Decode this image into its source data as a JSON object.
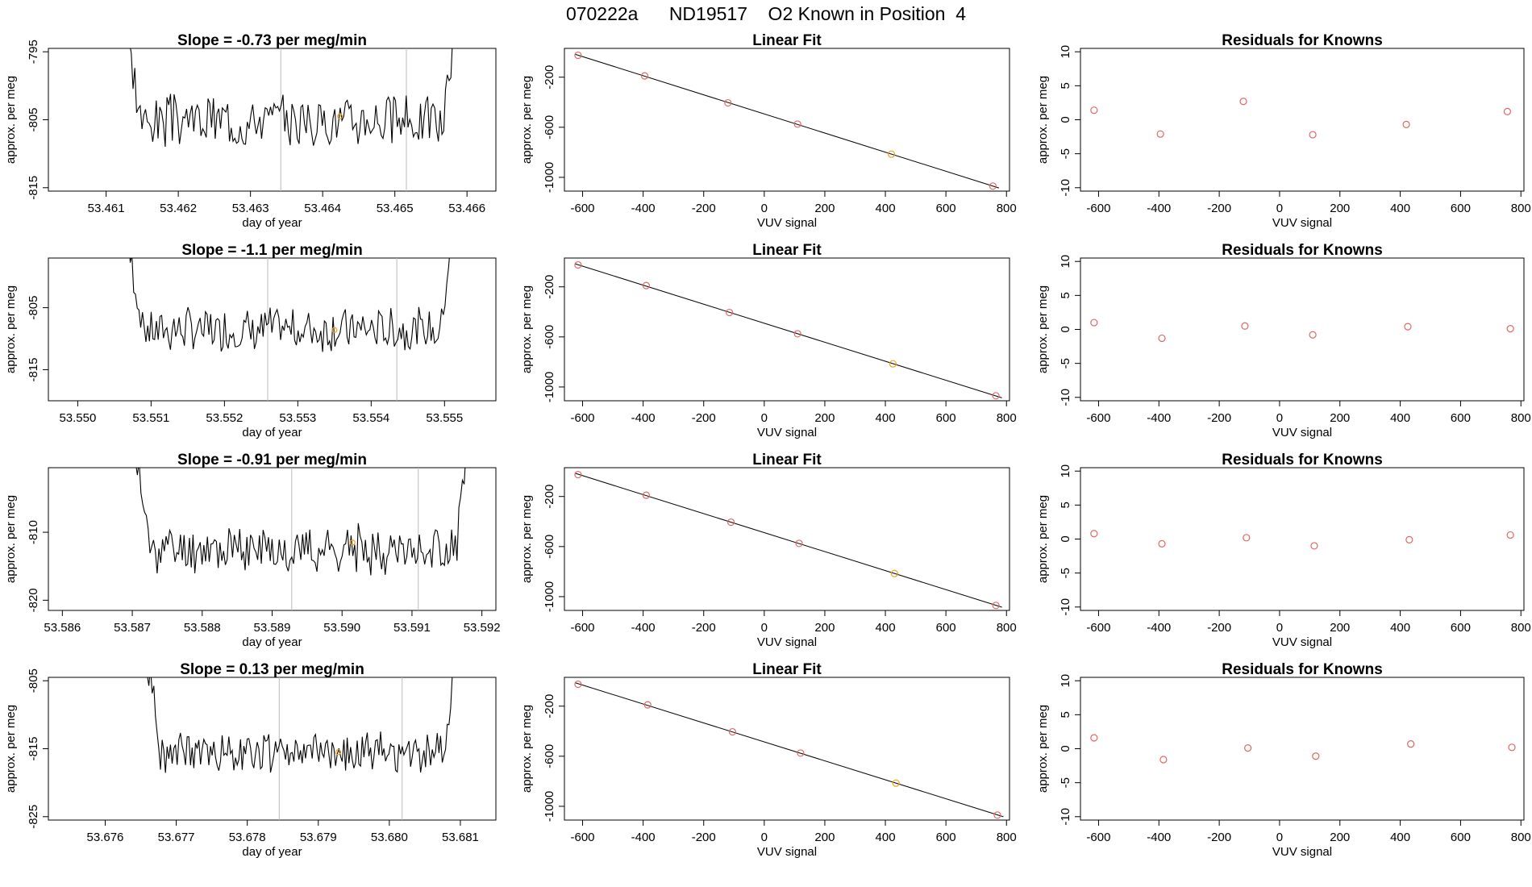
{
  "title": "070222a      ND19517    O2 Known in Position  4",
  "colors": {
    "trace": "#000000",
    "points": "#e06666",
    "highlight": "#f0a020",
    "vline": "#bbbbbb"
  },
  "chart_data": [
    {
      "row": 0,
      "panel": "trace",
      "type": "line",
      "title": "Slope =  -0.73  per meg/min",
      "xlabel": "day of year",
      "ylabel": "approx. per meg",
      "xlim": [
        53.4602,
        53.4664
      ],
      "ylim": [
        -815.5,
        -794.5
      ],
      "xticks": [
        "53.461",
        "53.462",
        "53.463",
        "53.464",
        "53.465",
        "53.466"
      ],
      "yticks": [
        "-795",
        "-805",
        "-815"
      ],
      "start": 53.4612,
      "end": 53.4659,
      "base": -805,
      "amp": 3.3,
      "vlines": [
        53.46342,
        53.46516
      ],
      "marker": [
        53.46424,
        -804.5
      ],
      "seed": 3
    },
    {
      "row": 0,
      "panel": "fit",
      "type": "scatter",
      "title": "Linear Fit",
      "xlabel": "VUV signal",
      "ylabel": "approx. per meg",
      "xlim": [
        -660,
        810
      ],
      "ylim": [
        -1110,
        30
      ],
      "xticks": [
        "-600",
        "-400",
        "-200",
        "0",
        "200",
        "400",
        "600",
        "800"
      ],
      "yticks": [
        "-200",
        "-600",
        "-1000"
      ],
      "x": [
        -615,
        -395,
        -120,
        110,
        420,
        755
      ],
      "y": [
        -25,
        -190,
        -405,
        -575,
        -815,
        -1070
      ],
      "highlight_index": 4
    },
    {
      "row": 0,
      "panel": "resid",
      "type": "scatter",
      "title": "Residuals for Knowns",
      "xlabel": "VUV signal",
      "ylabel": "approx. per meg",
      "xlim": [
        -660,
        810
      ],
      "ylim": [
        -10.5,
        10.5
      ],
      "xticks": [
        "-600",
        "-400",
        "-200",
        "0",
        "200",
        "400",
        "600",
        "800"
      ],
      "yticks": [
        "10",
        "5",
        "0",
        "-5",
        "-10"
      ],
      "x": [
        -615,
        -395,
        -120,
        110,
        420,
        755
      ],
      "y": [
        1.4,
        -2.1,
        2.7,
        -2.2,
        -0.7,
        1.2
      ]
    },
    {
      "row": 1,
      "panel": "trace",
      "type": "line",
      "title": "Slope =  -1.1  per meg/min",
      "xlabel": "day of year",
      "ylabel": "approx. per meg",
      "xlim": [
        53.5496,
        53.5557
      ],
      "ylim": [
        -820,
        -797
      ],
      "xticks": [
        "53.550",
        "53.551",
        "53.552",
        "53.553",
        "53.554",
        "53.555"
      ],
      "yticks": [
        "-805",
        "-815"
      ],
      "start": 53.55062,
      "end": 53.55515,
      "base": -808.5,
      "amp": 3.0,
      "vlines": [
        53.55259,
        53.55435
      ],
      "marker": [
        53.5535,
        -808.6
      ],
      "seed": 7
    },
    {
      "row": 1,
      "panel": "fit",
      "type": "scatter",
      "title": "Linear Fit",
      "xlabel": "VUV signal",
      "ylabel": "approx. per meg",
      "xlim": [
        -660,
        810
      ],
      "ylim": [
        -1110,
        30
      ],
      "xticks": [
        "-600",
        "-400",
        "-200",
        "0",
        "200",
        "400",
        "600",
        "800"
      ],
      "yticks": [
        "-200",
        "-600",
        "-1000"
      ],
      "x": [
        -615,
        -390,
        -115,
        110,
        425,
        765
      ],
      "y": [
        -25,
        -190,
        -405,
        -575,
        -815,
        -1070
      ],
      "highlight_index": 4
    },
    {
      "row": 1,
      "panel": "resid",
      "type": "scatter",
      "title": "Residuals for Knowns",
      "xlabel": "VUV signal",
      "ylabel": "approx. per meg",
      "xlim": [
        -660,
        810
      ],
      "ylim": [
        -10.5,
        10.5
      ],
      "xticks": [
        "-600",
        "-400",
        "-200",
        "0",
        "200",
        "400",
        "600",
        "800"
      ],
      "yticks": [
        "10",
        "5",
        "0",
        "-5",
        "-10"
      ],
      "x": [
        -615,
        -390,
        -115,
        110,
        425,
        765
      ],
      "y": [
        1.0,
        -1.3,
        0.5,
        -0.8,
        0.4,
        0.1
      ]
    },
    {
      "row": 2,
      "panel": "trace",
      "type": "line",
      "title": "Slope =  -0.91  per meg/min",
      "xlabel": "day of year",
      "ylabel": "approx. per meg",
      "xlim": [
        53.5858,
        53.5922
      ],
      "ylim": [
        -821.5,
        -800.5
      ],
      "xticks": [
        "53.586",
        "53.587",
        "53.588",
        "53.589",
        "53.590",
        "53.591",
        "53.592"
      ],
      "yticks": [
        "-810",
        "-820"
      ],
      "start": 53.58697,
      "end": 53.59185,
      "base": -812.5,
      "amp": 3.0,
      "vlines": [
        53.58928,
        53.59109
      ],
      "marker": [
        53.59015,
        -811.5
      ],
      "seed": 11
    },
    {
      "row": 2,
      "panel": "fit",
      "type": "scatter",
      "title": "Linear Fit",
      "xlabel": "VUV signal",
      "ylabel": "approx. per meg",
      "xlim": [
        -660,
        810
      ],
      "ylim": [
        -1110,
        30
      ],
      "xticks": [
        "-600",
        "-400",
        "-200",
        "0",
        "200",
        "400",
        "600",
        "800"
      ],
      "yticks": [
        "-200",
        "-600",
        "-1000"
      ],
      "x": [
        -615,
        -390,
        -110,
        115,
        430,
        765
      ],
      "y": [
        -25,
        -190,
        -405,
        -575,
        -815,
        -1070
      ],
      "highlight_index": 4
    },
    {
      "row": 2,
      "panel": "resid",
      "type": "scatter",
      "title": "Residuals for Knowns",
      "xlabel": "VUV signal",
      "ylabel": "approx. per meg",
      "xlim": [
        -660,
        810
      ],
      "ylim": [
        -10.5,
        10.5
      ],
      "xticks": [
        "-600",
        "-400",
        "-200",
        "0",
        "200",
        "400",
        "600",
        "800"
      ],
      "yticks": [
        "10",
        "5",
        "0",
        "-5",
        "-10"
      ],
      "x": [
        -615,
        -390,
        -110,
        115,
        430,
        765
      ],
      "y": [
        0.8,
        -0.7,
        0.2,
        -1.0,
        -0.1,
        0.6
      ]
    },
    {
      "row": 3,
      "panel": "trace",
      "type": "line",
      "title": "Slope =  0.13  per meg/min",
      "xlabel": "day of year",
      "ylabel": "approx. per meg",
      "xlim": [
        53.6752,
        53.6815
      ],
      "ylim": [
        -825.5,
        -804.5
      ],
      "xticks": [
        "53.676",
        "53.677",
        "53.678",
        "53.679",
        "53.680",
        "53.681"
      ],
      "yticks": [
        "-805",
        "-815",
        "-825"
      ],
      "start": 53.67652,
      "end": 53.68098,
      "base": -815.5,
      "amp": 2.6,
      "vlines": [
        53.67845,
        53.68018
      ],
      "marker": [
        53.67928,
        -815.5
      ],
      "seed": 19
    },
    {
      "row": 3,
      "panel": "fit",
      "type": "scatter",
      "title": "Linear Fit",
      "xlabel": "VUV signal",
      "ylabel": "approx. per meg",
      "xlim": [
        -660,
        810
      ],
      "ylim": [
        -1110,
        30
      ],
      "xticks": [
        "-600",
        "-400",
        "-200",
        "0",
        "200",
        "400",
        "600",
        "800"
      ],
      "yticks": [
        "-200",
        "-600",
        "-1000"
      ],
      "x": [
        -615,
        -385,
        -105,
        120,
        435,
        770
      ],
      "y": [
        -25,
        -190,
        -405,
        -575,
        -815,
        -1070
      ],
      "highlight_index": 4
    },
    {
      "row": 3,
      "panel": "resid",
      "type": "scatter",
      "title": "Residuals for Knowns",
      "xlabel": "VUV signal",
      "ylabel": "approx. per meg",
      "xlim": [
        -660,
        810
      ],
      "ylim": [
        -10.5,
        10.5
      ],
      "xticks": [
        "-600",
        "-400",
        "-200",
        "0",
        "200",
        "400",
        "600",
        "800"
      ],
      "yticks": [
        "10",
        "5",
        "0",
        "-5",
        "-10"
      ],
      "x": [
        -615,
        -385,
        -105,
        120,
        435,
        770
      ],
      "y": [
        1.6,
        -1.6,
        0.1,
        -1.1,
        0.7,
        0.2
      ]
    }
  ]
}
